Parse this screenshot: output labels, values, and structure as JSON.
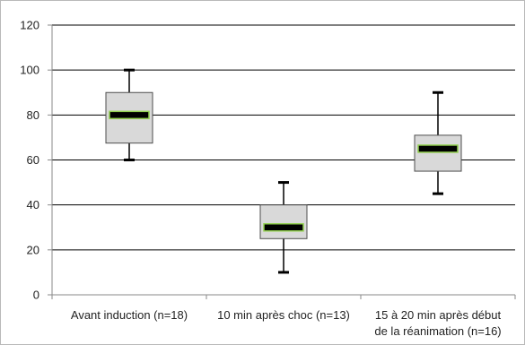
{
  "chart_data": {
    "type": "box",
    "ylim": [
      0,
      120
    ],
    "yticks": [
      0,
      20,
      40,
      60,
      80,
      100,
      120
    ],
    "grid": true,
    "categories": [
      [
        "Avant induction (n=18)"
      ],
      [
        "10 min après choc (n=13)"
      ],
      [
        "15 à 20 min après début",
        "de la réanimation (n=16)"
      ]
    ],
    "boxes": [
      {
        "min": 60,
        "q1": 67.5,
        "median": 80,
        "q3": 90,
        "max": 100
      },
      {
        "min": 10,
        "q1": 25,
        "median": 30,
        "q3": 40,
        "max": 50
      },
      {
        "min": 45,
        "q1": 55,
        "median": 65,
        "q3": 71,
        "max": 90
      }
    ],
    "colors": {
      "box_fill": "#d9d9d9",
      "box_stroke": "#4d4d4d",
      "median_fill": "#000000",
      "median_outline": "#92d050",
      "whisker": "#000000",
      "grid": "#000000"
    }
  }
}
